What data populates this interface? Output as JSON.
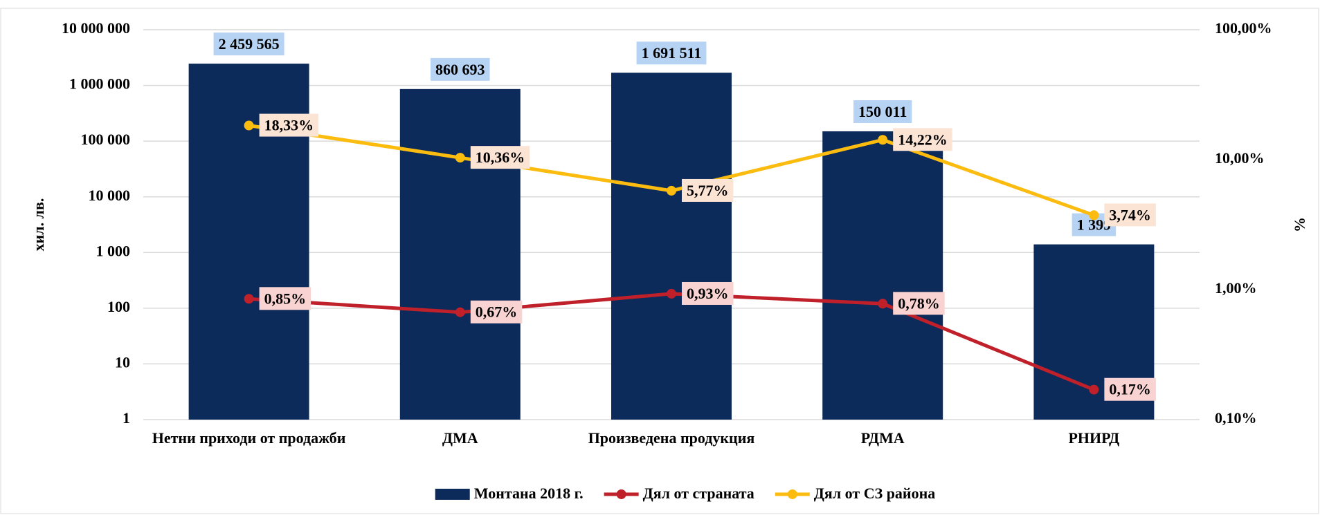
{
  "chart_data": {
    "type": "bar",
    "categories": [
      "Нетни приходи от продажби",
      "ДМА",
      "Произведена продукция",
      "РДМА",
      "РНИРД"
    ],
    "series": [
      {
        "name": "Монтана 2018 г.",
        "type": "bar",
        "color": "#0c2a5a",
        "values": [
          2459565,
          860693,
          1691511,
          150011,
          1399
        ],
        "value_labels": [
          "2 459 565",
          "860 693",
          "1 691 511",
          "150 011",
          "1 399"
        ]
      },
      {
        "name": "Дял от страната",
        "type": "line",
        "axis": "y2",
        "color": "#c0202a",
        "values": [
          0.85,
          0.67,
          0.93,
          0.78,
          0.17
        ],
        "value_labels": [
          "0,85%",
          "0,67%",
          "0,93%",
          "0,78%",
          "0,17%"
        ]
      },
      {
        "name": "Дял от СЗ района",
        "type": "line",
        "axis": "y2",
        "color": "#fbbc0f",
        "values": [
          18.33,
          10.36,
          5.77,
          14.22,
          3.74
        ],
        "value_labels": [
          "18,33%",
          "10,36%",
          "5,77%",
          "14,22%",
          "3,74%"
        ]
      }
    ],
    "y_label": "хил. лв.",
    "y2_label": "%",
    "ylog": true,
    "ylim": [
      1,
      10000000
    ],
    "yticks": [
      1,
      10,
      100,
      {
        "value": 1000,
        "label": "1 000"
      },
      {
        "value": 10000,
        "label": "10 000"
      },
      {
        "value": 100000,
        "label": "100 000"
      },
      {
        "value": 1000000,
        "label": "1 000 000"
      },
      {
        "value": 10000000,
        "label": "10 000 000"
      }
    ],
    "y2log": true,
    "y2lim": [
      0.1,
      100
    ],
    "y2ticks": [
      {
        "value": 0.1,
        "label": "0,10%"
      },
      {
        "value": 1,
        "label": "1,00%"
      },
      {
        "value": 10,
        "label": "10,00%"
      },
      {
        "value": 100,
        "label": "100,00%"
      }
    ],
    "grid": true,
    "legend": "bottom"
  }
}
